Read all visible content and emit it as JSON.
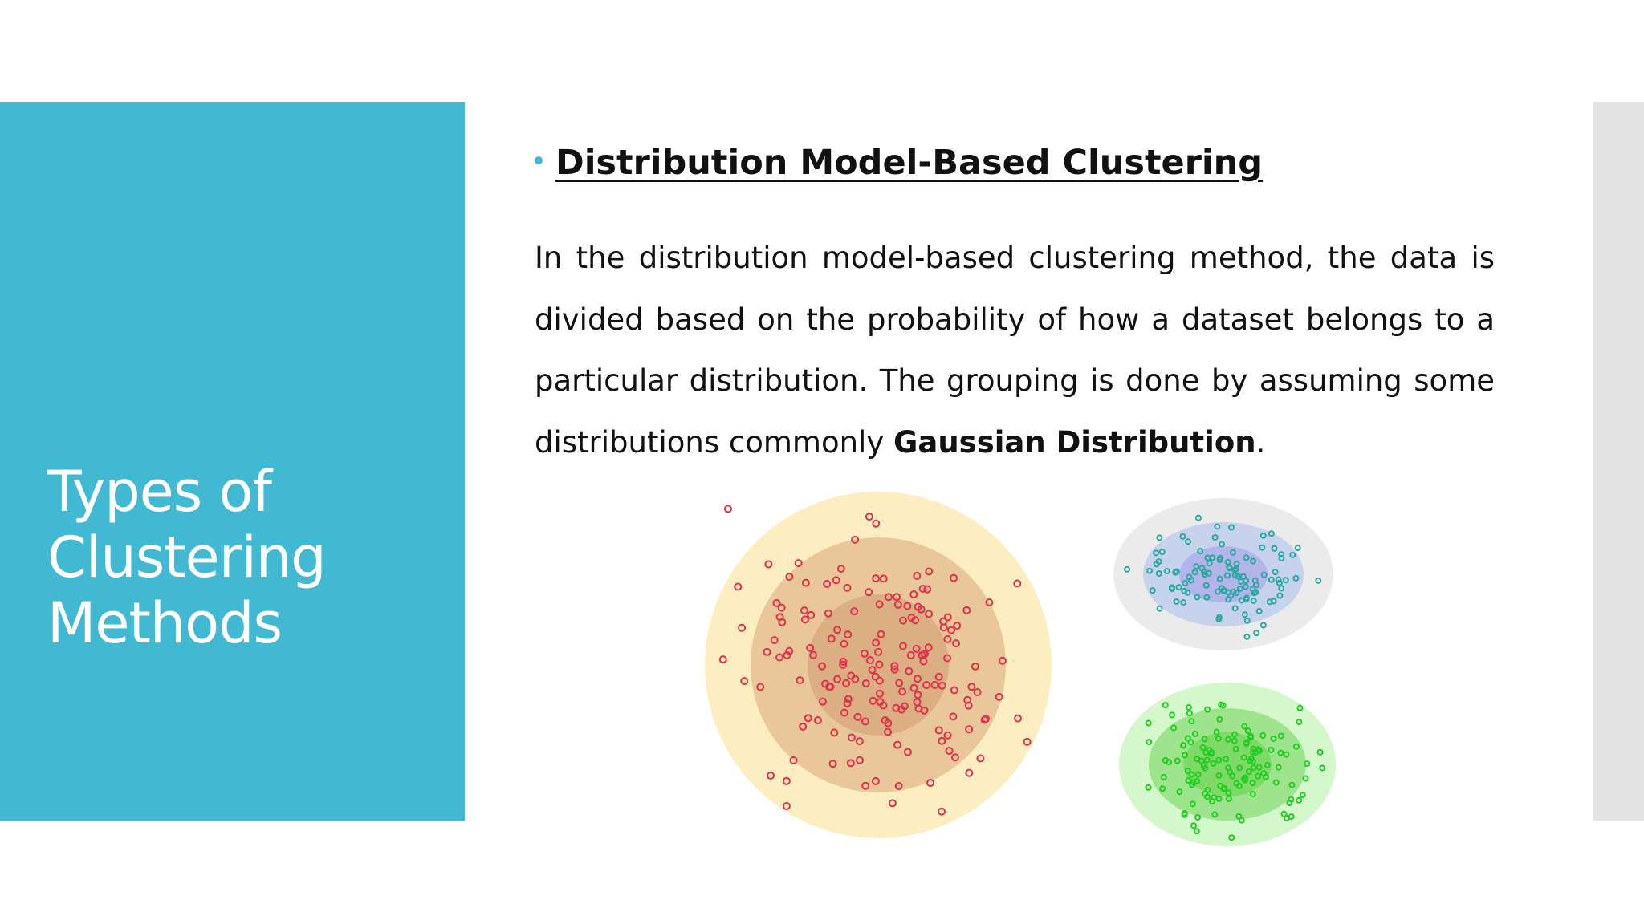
{
  "sidebar": {
    "title": "Types of Clustering Methods"
  },
  "content": {
    "heading": "Distribution Model-Based Clustering",
    "paragraph": {
      "text": "In the distribution model-based clustering method, the data is divided based on the probability of how a dataset belongs to a particular distribution. The grouping is done by assuming some distributions commonly",
      "bold": "Gaussian Distribution",
      "end": "."
    }
  }
}
